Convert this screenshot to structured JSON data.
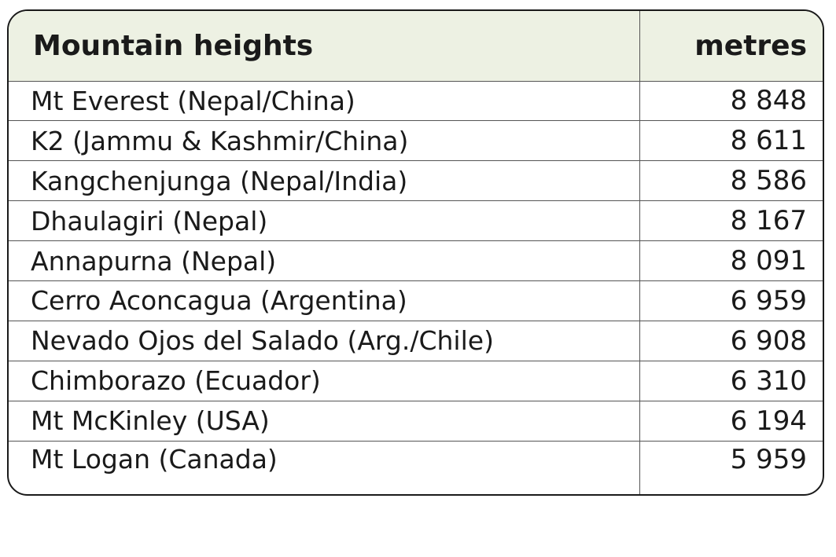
{
  "table": {
    "header": {
      "name": "Mountain heights",
      "unit": "metres"
    },
    "rows": [
      {
        "name": "Mt Everest (Nepal/China)",
        "height": "8 848"
      },
      {
        "name": "K2 (Jammu & Kashmir/China)",
        "height": "8 611"
      },
      {
        "name": "Kangchenjunga (Nepal/India)",
        "height": "8 586"
      },
      {
        "name": "Dhaulagiri (Nepal)",
        "height": "8 167"
      },
      {
        "name": "Annapurna (Nepal)",
        "height": "8 091"
      },
      {
        "name": "Cerro Aconcagua (Argentina)",
        "height": "6 959"
      },
      {
        "name": "Nevado Ojos del Salado (Arg./Chile)",
        "height": "6 908"
      },
      {
        "name": "Chimborazo (Ecuador)",
        "height": "6 310"
      },
      {
        "name": "Mt McKinley (USA)",
        "height": "6 194"
      },
      {
        "name": "Mt Logan (Canada)",
        "height": "5 959"
      }
    ]
  },
  "colors": {
    "header_background": "#edf1e3",
    "border": "#1a1a1a",
    "text": "#1a1a1a"
  }
}
